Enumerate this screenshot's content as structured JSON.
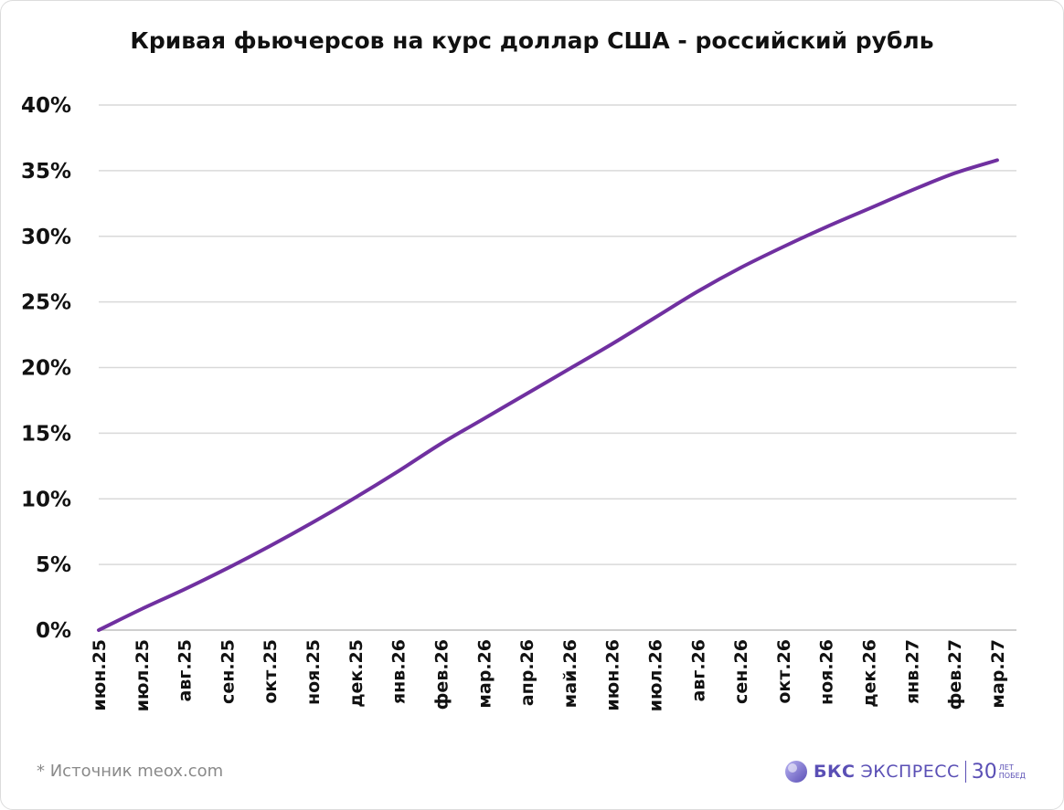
{
  "chart_data": {
    "type": "line",
    "title": "Кривая фьючерсов на курс доллар США - российский рубль",
    "categories": [
      "июн.25",
      "июл.25",
      "авг.25",
      "сен.25",
      "окт.25",
      "ноя.25",
      "дек.25",
      "янв.26",
      "фев.26",
      "мар.26",
      "апр.26",
      "май.26",
      "июн.26",
      "июл.26",
      "авг.26",
      "сен.26",
      "окт.26",
      "ноя.26",
      "дек.26",
      "янв.27",
      "фев.27",
      "мар.27"
    ],
    "series": [
      {
        "values": [
          0.0,
          1.6,
          3.1,
          4.7,
          6.4,
          8.2,
          10.1,
          12.1,
          14.2,
          16.1,
          18.0,
          19.9,
          21.8,
          23.8,
          25.8,
          27.6,
          29.2,
          30.7,
          32.1,
          33.5,
          34.8,
          35.8
        ]
      }
    ],
    "yticks": [
      "0%",
      "5%",
      "10%",
      "15%",
      "20%",
      "25%",
      "30%",
      "35%",
      "40%"
    ],
    "ylim": [
      0,
      40
    ],
    "grid": true,
    "line_color": "#7030a0"
  },
  "footer": {
    "source": "*  Источник meox.com",
    "brand_bold": "БКС",
    "brand_rest": "ЭКСПРЕСС",
    "anniv_num": "30",
    "anniv_top": "ЛЕТ",
    "anniv_bottom": "ПОБЕД"
  }
}
